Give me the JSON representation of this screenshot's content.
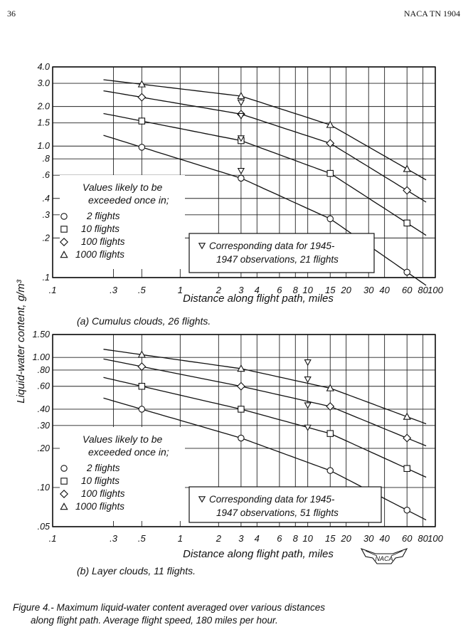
{
  "header": {
    "page_number": "36",
    "report_id": "NACA TN 1904"
  },
  "shared": {
    "ylabel": "Liquid-water content, g/m³",
    "xlabel": "Distance along flight path, miles",
    "legend_title_1": "Values likely to be",
    "legend_title_2": "exceeded once in;",
    "legend_items": [
      "2 flights",
      "10 flights",
      "100 flights",
      "1000 flights"
    ],
    "marker_names": [
      "circle",
      "square",
      "diamond",
      "triangle"
    ],
    "logo_text": "NACA"
  },
  "chart_data": [
    {
      "type": "line",
      "subcaption": "(a) Cumulus clouds, 26 flights.",
      "xscale": "log",
      "yscale": "log",
      "xlim": [
        0.1,
        100
      ],
      "ylim": [
        0.1,
        4.0
      ],
      "x_tick_labels": [
        ".1",
        ".3",
        ".5",
        "1",
        "2",
        "3",
        "4",
        "6",
        "8",
        "10",
        "15",
        "20",
        "30",
        "40",
        "60",
        "80",
        "100"
      ],
      "y_tick_labels": [
        ".1",
        ".2",
        ".3",
        ".4",
        ".6",
        ".8",
        "1.0",
        "1.5",
        "2.0",
        "3.0",
        "4.0"
      ],
      "grid": true,
      "note_1": "Corresponding data for 1945-",
      "note_2": "1947 observations, 21 flights",
      "series": [
        {
          "name": "2 flights",
          "marker": "circle",
          "points": [
            [
              0.5,
              0.98
            ],
            [
              3,
              0.57
            ],
            [
              15,
              0.28
            ],
            [
              60,
              0.11
            ]
          ]
        },
        {
          "name": "10 flights",
          "marker": "square",
          "points": [
            [
              0.5,
              1.55
            ],
            [
              3,
              1.1
            ],
            [
              15,
              0.62
            ],
            [
              60,
              0.26
            ]
          ]
        },
        {
          "name": "100 flights",
          "marker": "diamond",
          "points": [
            [
              0.5,
              2.35
            ],
            [
              3,
              1.75
            ],
            [
              15,
              1.05
            ],
            [
              60,
              0.46
            ]
          ]
        },
        {
          "name": "1000 flights",
          "marker": "triangle",
          "points": [
            [
              0.5,
              2.95
            ],
            [
              3,
              2.4
            ],
            [
              15,
              1.45
            ],
            [
              60,
              0.67
            ]
          ]
        }
      ],
      "observations_1945_1947": {
        "x": [
          3,
          3,
          3,
          3
        ],
        "y": [
          2.15,
          1.7,
          1.15,
          0.65
        ]
      }
    },
    {
      "type": "line",
      "subcaption": "(b) Layer clouds, 11 flights.",
      "xscale": "log",
      "yscale": "log",
      "xlim": [
        0.1,
        100
      ],
      "ylim": [
        0.05,
        1.5
      ],
      "x_tick_labels": [
        ".1",
        ".3",
        ".5",
        "1",
        "2",
        "3",
        "4",
        "6",
        "8",
        "10",
        "15",
        "20",
        "30",
        "40",
        "60",
        "80",
        "100"
      ],
      "y_tick_labels": [
        ".05",
        ".10",
        ".20",
        ".30",
        ".40",
        ".60",
        ".80",
        "1.00",
        "1.50"
      ],
      "grid": true,
      "note_1": "Corresponding data for 1945-",
      "note_2": "1947 observations, 51 flights",
      "series": [
        {
          "name": "2 flights",
          "marker": "circle",
          "points": [
            [
              0.5,
              0.4
            ],
            [
              3,
              0.24
            ],
            [
              15,
              0.135
            ],
            [
              60,
              0.067
            ]
          ]
        },
        {
          "name": "10 flights",
          "marker": "square",
          "points": [
            [
              0.5,
              0.6
            ],
            [
              3,
              0.4
            ],
            [
              15,
              0.26
            ],
            [
              60,
              0.14
            ]
          ]
        },
        {
          "name": "100 flights",
          "marker": "diamond",
          "points": [
            [
              0.5,
              0.85
            ],
            [
              3,
              0.6
            ],
            [
              15,
              0.42
            ],
            [
              60,
              0.24
            ]
          ]
        },
        {
          "name": "1000 flights",
          "marker": "triangle",
          "points": [
            [
              0.5,
              1.05
            ],
            [
              3,
              0.82
            ],
            [
              15,
              0.58
            ],
            [
              60,
              0.35
            ]
          ]
        }
      ],
      "observations_1945_1947": {
        "x": [
          10,
          10,
          10,
          10
        ],
        "y": [
          0.92,
          0.68,
          0.43,
          0.29
        ]
      }
    }
  ],
  "figure_caption": {
    "line1": "Figure 4.- Maximum liquid-water content averaged over various distances",
    "line2": "along flight path. Average flight speed, 180 miles per hour."
  }
}
